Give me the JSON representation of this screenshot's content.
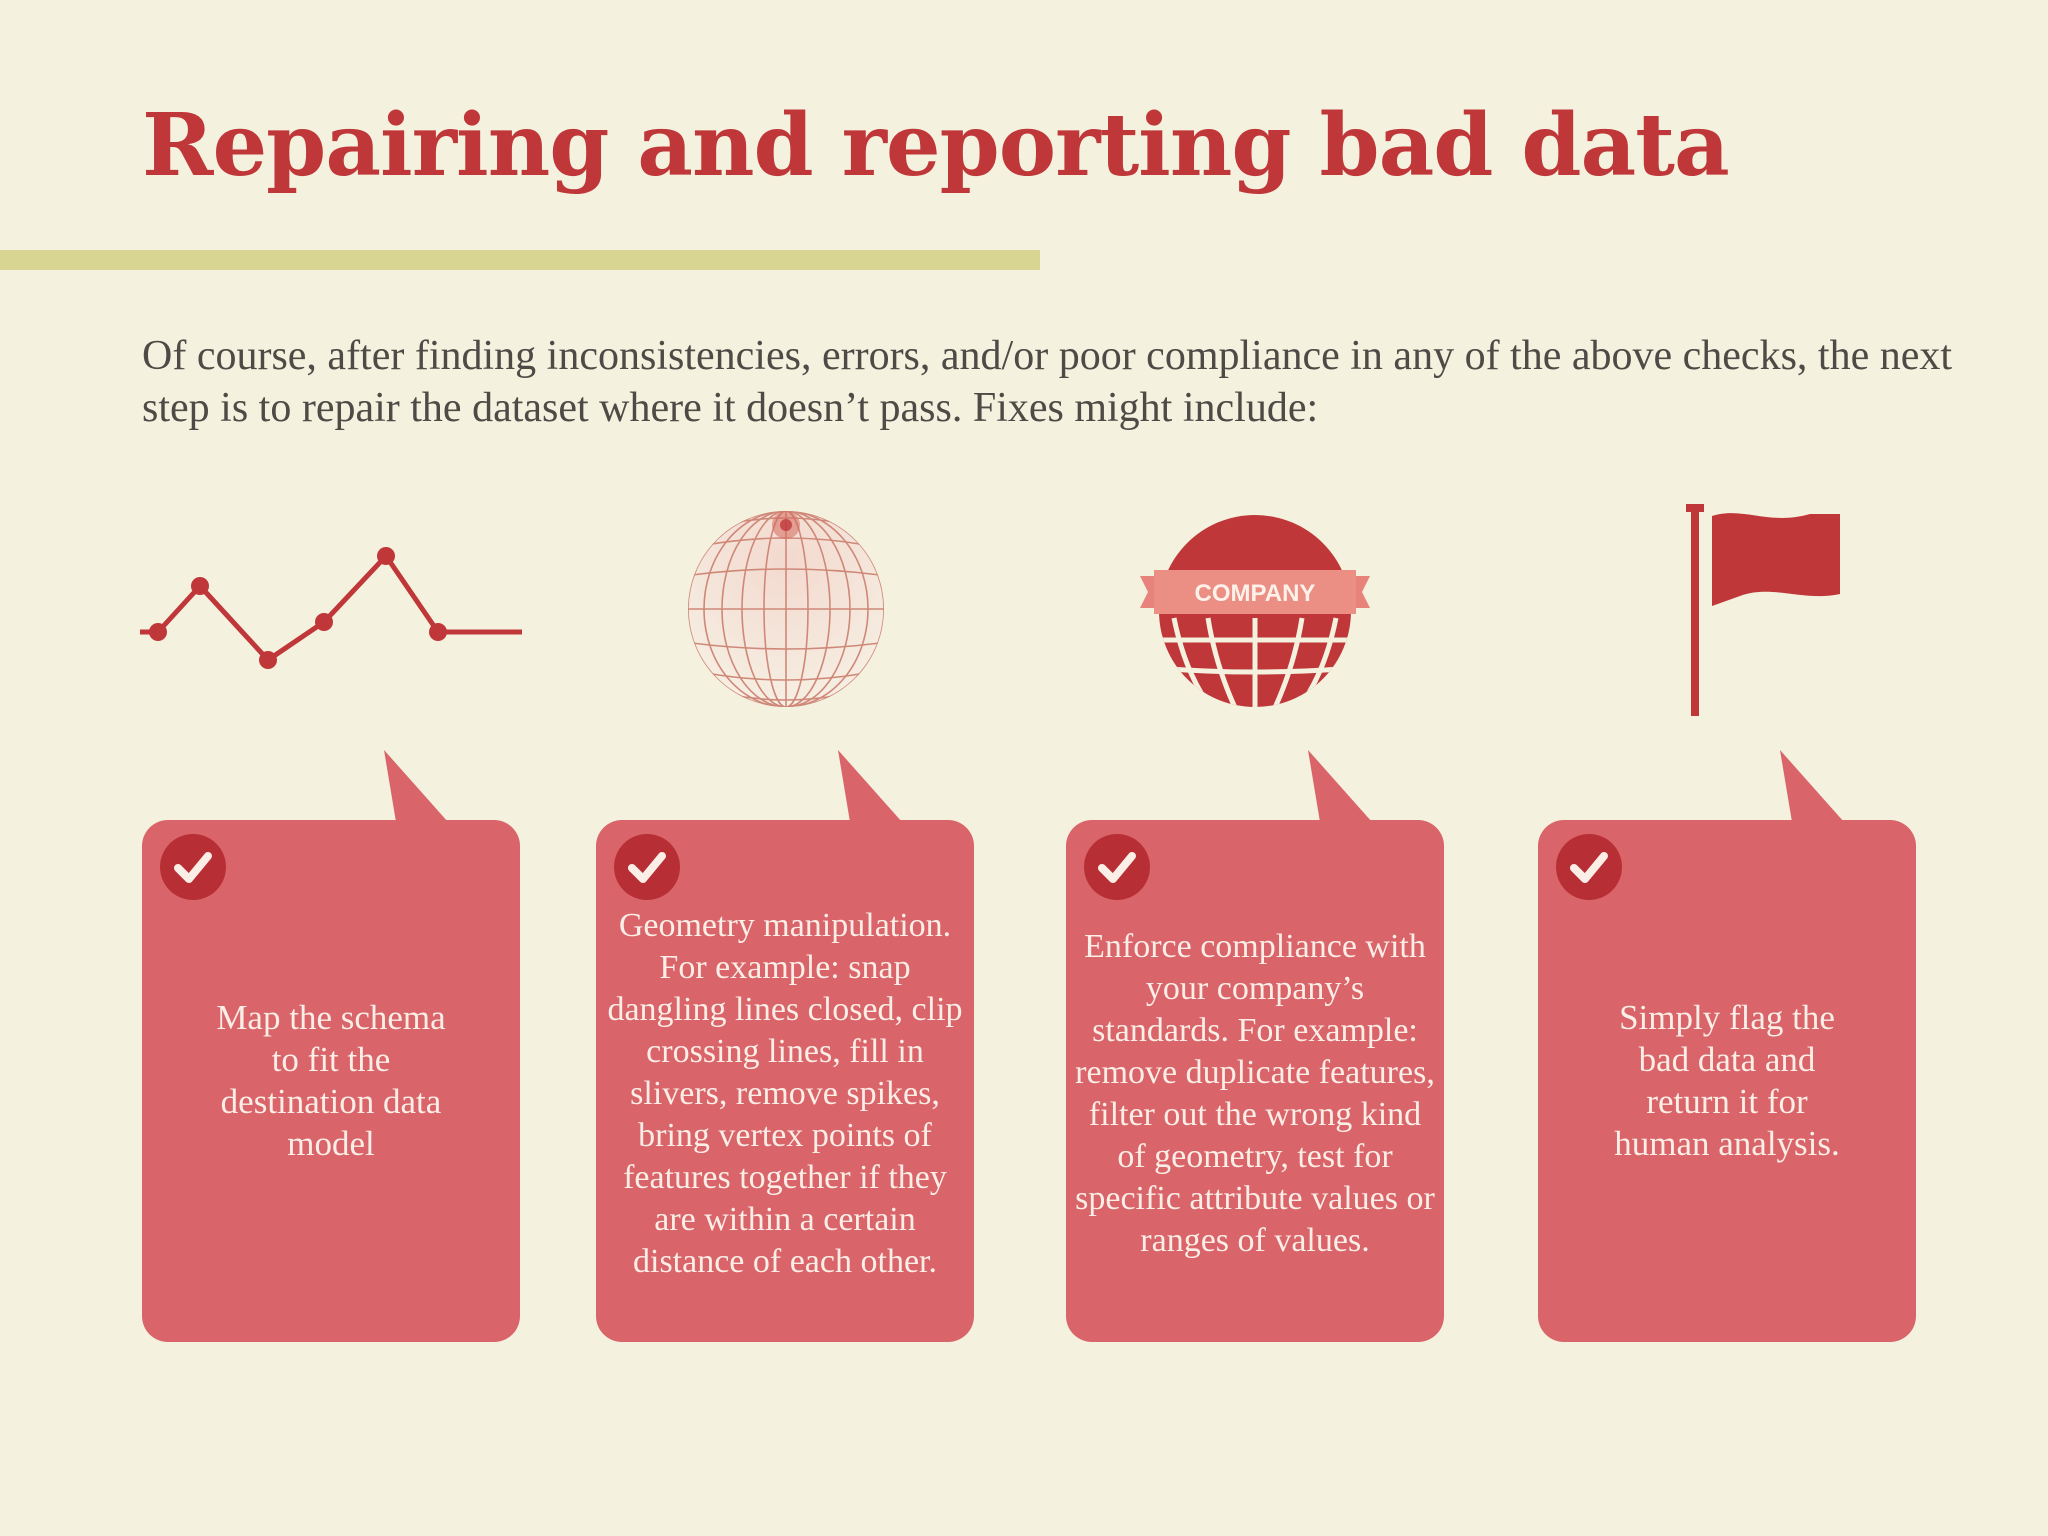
{
  "page": {
    "title": "Repairing and reporting bad data",
    "intro": "Of course, after finding inconsistencies, errors, and/or poor compliance in any of the above checks, the next step is to repair the dataset where it doesn’t pass. Fixes might include:"
  },
  "colors": {
    "background": "#f4f1de",
    "accent_red": "#c0373a",
    "card_red": "#d9646a",
    "check_red": "#b72f35",
    "rule_yellow": "#d8d492"
  },
  "icons": [
    "line-chart-icon",
    "globe-grid-icon",
    "company-globe-icon",
    "flag-icon"
  ],
  "company_badge": "COMPANY",
  "cards": [
    {
      "icon": "line-chart-icon",
      "text": "Map the schema to fit the destination data model"
    },
    {
      "icon": "globe-grid-icon",
      "text": "Geometry manipulation. For example: snap dangling lines closed, clip crossing lines, fill in slivers, remove spikes, bring vertex points of features together if they are within a certain distance of each other."
    },
    {
      "icon": "company-globe-icon",
      "text": "Enforce compliance with your company’s standards. For example: remove duplicate features, filter out the wrong kind of geometry, test for specific attribute values or ranges of values."
    },
    {
      "icon": "flag-icon",
      "text": "Simply flag the bad data and return it for human analysis."
    }
  ]
}
